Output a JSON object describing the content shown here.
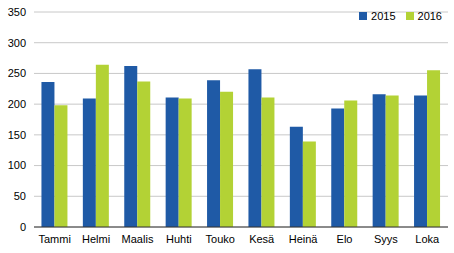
{
  "chart_data": {
    "type": "bar",
    "categories": [
      "Tammi",
      "Helmi",
      "Maalis",
      "Huhti",
      "Touko",
      "Kesä",
      "Heinä",
      "Elo",
      "Syys",
      "Loka"
    ],
    "series": [
      {
        "name": "2015",
        "color": "#1f5aa6",
        "values": [
          236,
          209,
          262,
          211,
          239,
          257,
          163,
          193,
          216,
          214
        ]
      },
      {
        "name": "2016",
        "color": "#b3d235",
        "values": [
          198,
          264,
          237,
          209,
          220,
          211,
          139,
          206,
          214,
          255
        ]
      }
    ],
    "ylim": [
      0,
      350
    ],
    "yticks": [
      0,
      50,
      100,
      150,
      200,
      250,
      300,
      350
    ],
    "grid": true,
    "legend": "top-right"
  }
}
